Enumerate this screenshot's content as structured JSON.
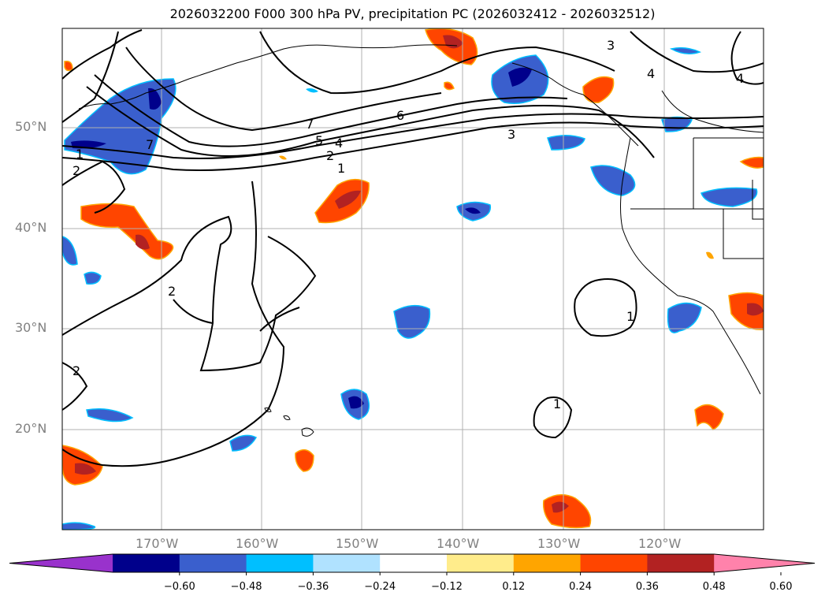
{
  "title": "2026032200 F000 300 hPa PV, precipitation PC (2026032412 - 2026032512)",
  "map": {
    "lon_labels": [
      "170°W",
      "160°W",
      "150°W",
      "140°W",
      "130°W",
      "120°W"
    ],
    "lat_labels": [
      "50°N",
      "40°N",
      "30°N",
      "20°N"
    ],
    "contour_labels": [
      "3",
      "4",
      "4",
      "6",
      "7",
      "5",
      "4",
      "2",
      "1",
      "3",
      "1",
      "2",
      "2",
      "2",
      "1",
      "1",
      "7"
    ]
  },
  "colorbar": {
    "ticks": [
      "−0.60",
      "−0.48",
      "−0.36",
      "−0.24",
      "−0.12",
      "0.12",
      "0.24",
      "0.36",
      "0.48",
      "0.60"
    ],
    "colors": [
      "#9932cc",
      "#00008b",
      "#3a5fcd",
      "#00bfff",
      "#b0e2ff",
      "#ffffff",
      "#ffec8b",
      "#ffa500",
      "#ff4500",
      "#b22222",
      "#ff82ab"
    ]
  }
}
